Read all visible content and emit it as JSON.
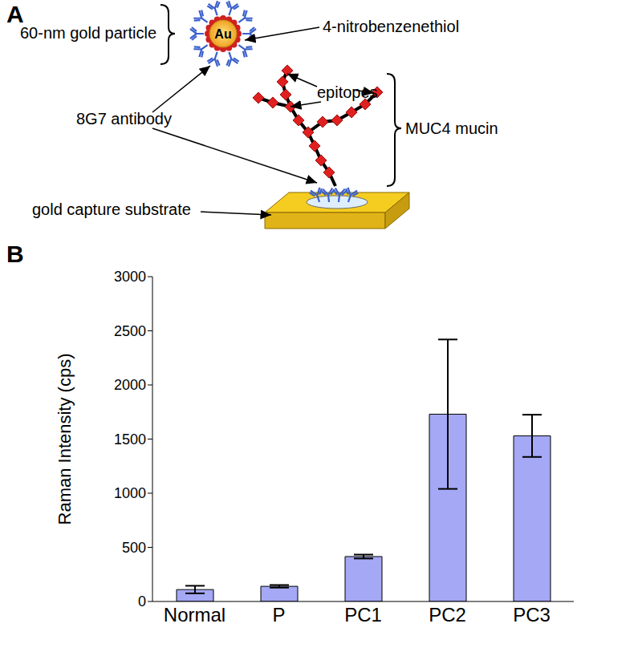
{
  "panel_a": {
    "letter": "A",
    "labels": {
      "particle": "60-nm gold particle",
      "core": "Au",
      "reporter": "4-nitrobenzenethiol",
      "epitopes": "epitopes",
      "antibody": "8G7 antibody",
      "mucin": "MUC4 mucin",
      "substrate": "gold capture substrate"
    }
  },
  "chart_data": {
    "panel": "B",
    "type": "bar",
    "categories": [
      "Normal",
      "P",
      "PC1",
      "PC2",
      "PC3"
    ],
    "values": [
      110,
      140,
      415,
      1730,
      1530
    ],
    "errors": [
      35,
      12,
      18,
      690,
      195
    ],
    "color": "#a4a8f5",
    "ylabel": "Raman Intensity (cps)",
    "ylim": [
      0,
      3000
    ],
    "yticks": [
      0,
      500,
      1000,
      1500,
      2000,
      2500,
      3000
    ]
  }
}
